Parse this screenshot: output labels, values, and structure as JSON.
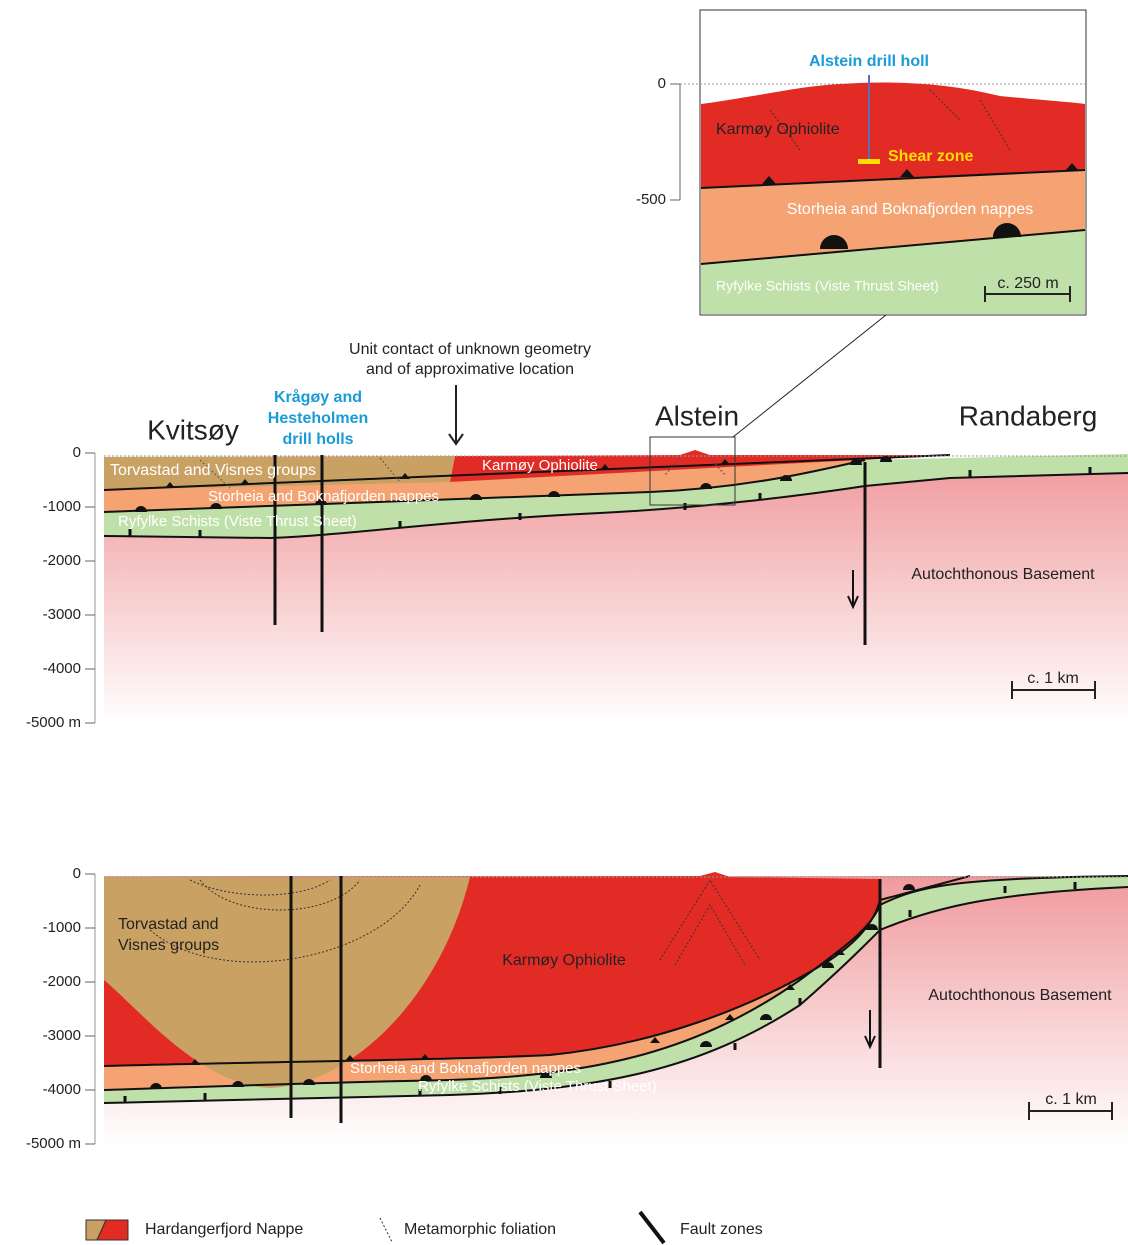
{
  "inset": {
    "axis": {
      "ticks": [
        0,
        -500
      ]
    },
    "drill_hole": "Alstein drill holl",
    "units": {
      "ophiolite": "Karmøy Ophiolite",
      "nappes": "Storheia and Boknafjorden nappes",
      "schists": "Ryfylke Schists (Viste Thrust Sheet)"
    },
    "shear_zone": "Shear zone",
    "scale": "c. 250 m"
  },
  "annotation": {
    "contact": [
      "Unit contact of unknown geometry",
      "and of approximative location"
    ],
    "drill_holes": [
      "Krågøy and",
      "Hesteholmen",
      "drill holls"
    ]
  },
  "localities": [
    "Kvitsøy",
    "Alstein",
    "Randaberg"
  ],
  "sections": [
    {
      "axis": {
        "ticks": [
          0,
          -1000,
          -2000,
          -3000,
          -4000,
          {
            "value": -5000,
            "label": "-5000 m"
          }
        ]
      },
      "units": {
        "torvastad": [
          "Torvastad and Visnes groups"
        ],
        "ophiolite": "Karmøy Ophiolite",
        "nappes": "Storheia and Boknafjorden nappes",
        "schists": "Ryfylke Schists (Viste Thrust Sheet)",
        "basement": "Autochthonous Basement"
      },
      "scale": "c. 1 km"
    },
    {
      "axis": {
        "ticks": [
          0,
          -1000,
          -2000,
          -3000,
          -4000,
          {
            "value": -5000,
            "label": "-5000 m"
          }
        ]
      },
      "units": {
        "torvastad": [
          "Torvastad and",
          "Visnes groups"
        ],
        "ophiolite": "Karmøy Ophiolite",
        "nappes": "Storheia and Boknafjorden nappes",
        "schists": "Ryfylke Schists (Viste Thrust Sheet)",
        "basement": "Autochthonous Basement"
      },
      "scale": "c. 1 km"
    }
  ],
  "legend": [
    "Hardangerfjord Nappe",
    "Metamorphic foliation",
    "Fault zones"
  ]
}
